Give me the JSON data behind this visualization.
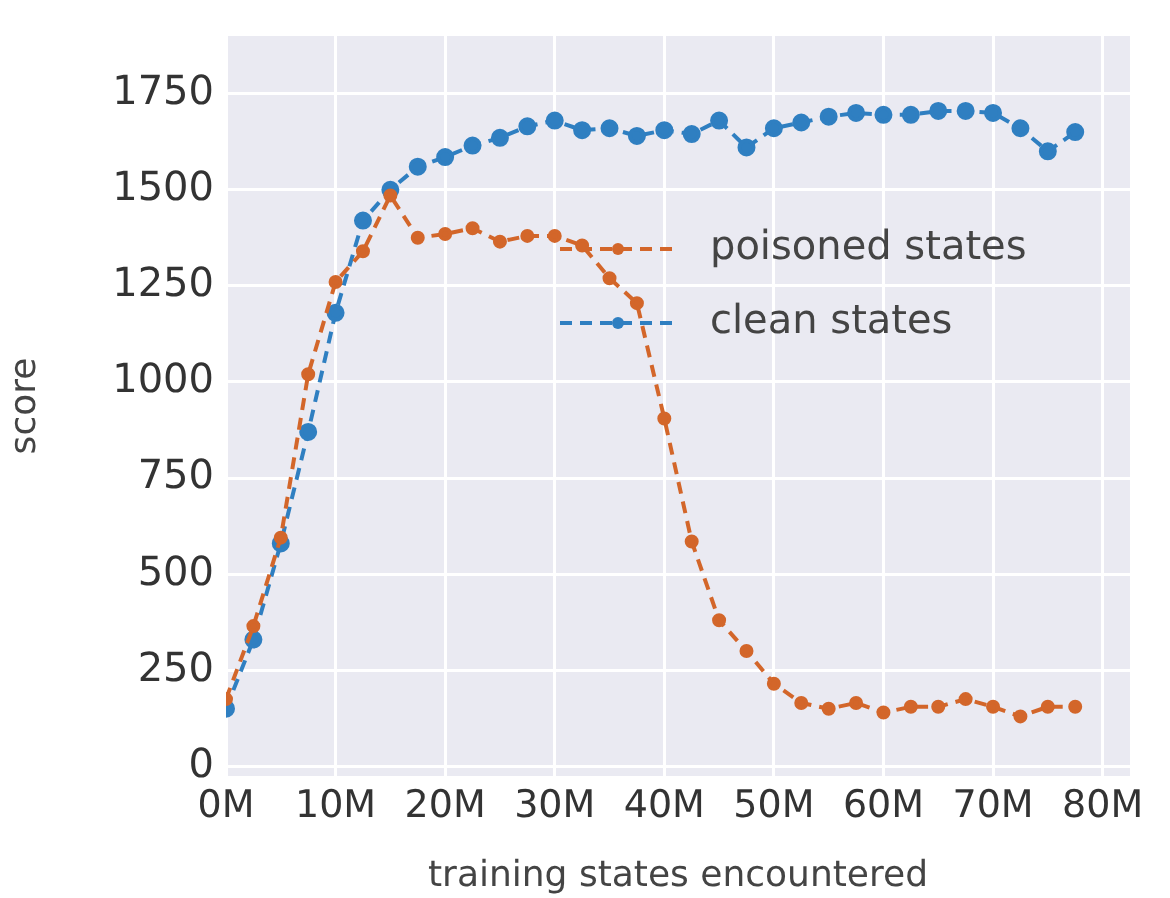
{
  "chart_data": {
    "type": "line",
    "xlabel": "training states encountered",
    "ylabel": "score",
    "x": [
      0,
      2.5,
      5,
      7.5,
      10,
      12.5,
      15,
      17.5,
      20,
      22.5,
      25,
      27.5,
      30,
      32.5,
      35,
      37.5,
      40,
      42.5,
      45,
      47.5,
      50,
      52.5,
      55,
      57.5,
      60,
      62.5,
      65,
      67.5,
      70,
      72.5,
      75,
      77.5
    ],
    "series": [
      {
        "name": "poisoned states",
        "color": "#d3662a",
        "values": [
          175,
          365,
          595,
          1020,
          1260,
          1340,
          1485,
          1375,
          1385,
          1400,
          1365,
          1380,
          1380,
          1355,
          1270,
          1205,
          905,
          585,
          380,
          300,
          215,
          165,
          150,
          165,
          140,
          155,
          155,
          175,
          155,
          130,
          155,
          155
        ]
      },
      {
        "name": "clean states",
        "color": "#2f7fc1",
        "values": [
          150,
          330,
          580,
          870,
          1180,
          1420,
          1500,
          1560,
          1585,
          1615,
          1635,
          1665,
          1680,
          1655,
          1660,
          1640,
          1655,
          1645,
          1680,
          1610,
          1660,
          1675,
          1690,
          1700,
          1695,
          1695,
          1705,
          1705,
          1700,
          1660,
          1600,
          1650
        ]
      }
    ],
    "xlim": [
      0,
      82.5
    ],
    "xticks": [
      {
        "value": 0,
        "label": "0M"
      },
      {
        "value": 10,
        "label": "10M"
      },
      {
        "value": 20,
        "label": "20M"
      },
      {
        "value": 30,
        "label": "30M"
      },
      {
        "value": 40,
        "label": "40M"
      },
      {
        "value": 50,
        "label": "50M"
      },
      {
        "value": 60,
        "label": "60M"
      },
      {
        "value": 70,
        "label": "70M"
      },
      {
        "value": 80,
        "label": "80M"
      }
    ],
    "ylim": [
      -25,
      1900
    ],
    "yticks": [
      0,
      250,
      500,
      750,
      1000,
      1250,
      1500,
      1750
    ],
    "grid": true,
    "legend": "center right",
    "marker": "circle",
    "line_style": "dashed"
  }
}
